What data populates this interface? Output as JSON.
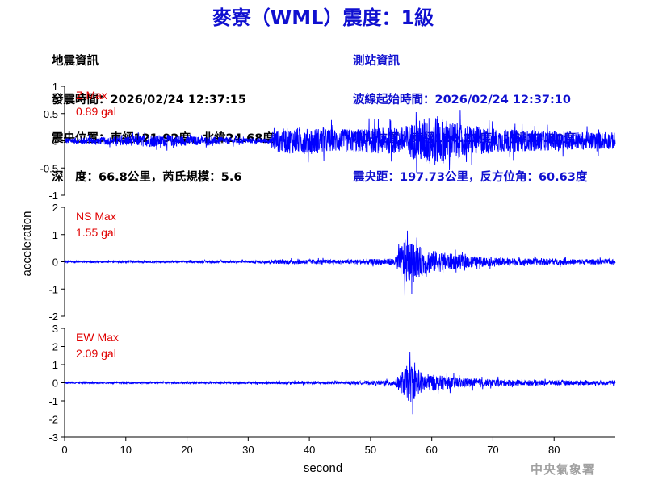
{
  "title": "麥寮（WML）震度：1級",
  "earthquake_info": {
    "heading": "地震資訊",
    "origin_time": "發震時間：2026/02/24 12:37:15",
    "epicenter": "震央位置：東經121.92度，北緯24.68度",
    "depth_magnitude": "深　度：66.8公里，芮氏規模：5.6"
  },
  "station_info": {
    "heading": "測站資訊",
    "wave_start": "波線起始時間：2026/02/24 12:37:10",
    "location": "測站位置：東經120.22度，北緯23.80度",
    "distance_azimuth": "震央距：197.73公里，反方位角：60.63度"
  },
  "agency": "中央氣象署",
  "colors": {
    "title": "#1010d0",
    "trace": "#0000ff",
    "max_label": "#e00000",
    "station_text": "#1010d0"
  },
  "chart_data": [
    {
      "type": "line",
      "component": "Z",
      "label": "Z Max",
      "max_value": "0.89 gal",
      "ylim": [
        -1,
        1
      ],
      "y_ticks": [
        "1",
        "0.5",
        "0",
        "-0.5",
        "-1"
      ],
      "xlim": [
        0,
        90
      ],
      "x": [
        0,
        5,
        10,
        14,
        18,
        22,
        26,
        30,
        33.5,
        34,
        36,
        40,
        45,
        50,
        55,
        58,
        60,
        62,
        65,
        70,
        75,
        80,
        85,
        90
      ],
      "envelope": [
        0.1,
        0.12,
        0.16,
        0.2,
        0.18,
        0.14,
        0.12,
        0.09,
        0.08,
        0.35,
        0.42,
        0.45,
        0.38,
        0.42,
        0.45,
        0.7,
        0.89,
        0.75,
        0.55,
        0.42,
        0.35,
        0.32,
        0.3,
        0.28
      ]
    },
    {
      "type": "line",
      "component": "NS",
      "label": "NS Max",
      "max_value": "1.55 gal",
      "ylim": [
        -2,
        2
      ],
      "y_ticks": [
        "2",
        "1",
        "0",
        "-1",
        "-2"
      ],
      "xlim": [
        0,
        90
      ],
      "x": [
        0,
        10,
        20,
        30,
        35,
        40,
        45,
        50,
        54,
        55.5,
        56.5,
        57.5,
        59,
        61,
        63,
        66,
        70,
        75,
        80,
        85,
        90
      ],
      "envelope": [
        0.06,
        0.06,
        0.07,
        0.08,
        0.14,
        0.16,
        0.14,
        0.18,
        0.25,
        1.55,
        1.3,
        1.1,
        0.85,
        0.7,
        0.55,
        0.4,
        0.28,
        0.22,
        0.2,
        0.18,
        0.16
      ]
    },
    {
      "type": "line",
      "component": "EW",
      "label": "EW Max",
      "max_value": "2.09 gal",
      "ylim": [
        -3,
        3
      ],
      "y_ticks": [
        "3",
        "2",
        "1",
        "0",
        "-1",
        "-2",
        "-3"
      ],
      "xlim": [
        0,
        90
      ],
      "x": [
        0,
        10,
        20,
        30,
        35,
        40,
        45,
        50,
        54,
        55.5,
        56.5,
        57.5,
        59,
        61,
        63,
        66,
        70,
        75,
        80,
        85,
        90
      ],
      "envelope": [
        0.08,
        0.08,
        0.09,
        0.1,
        0.14,
        0.16,
        0.14,
        0.18,
        0.3,
        1.4,
        2.09,
        1.3,
        0.9,
        0.75,
        0.6,
        0.45,
        0.35,
        0.28,
        0.25,
        0.22,
        0.2
      ]
    }
  ],
  "axes": {
    "xlabel": "second",
    "ylabel": "acceleration",
    "x_ticks": [
      "0",
      "10",
      "20",
      "30",
      "40",
      "50",
      "60",
      "70",
      "80"
    ]
  }
}
